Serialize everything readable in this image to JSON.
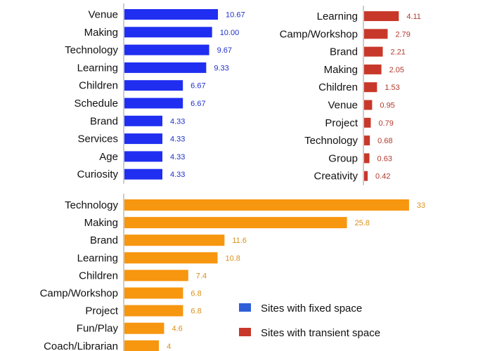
{
  "chart_data": [
    {
      "id": "fixed",
      "type": "bar",
      "orientation": "horizontal",
      "color": "#1f2ef0",
      "value_label_color": "#2030c8",
      "categories": [
        "Venue",
        "Making",
        "Technology",
        "Learning",
        "Children",
        "Schedule",
        "Brand",
        "Services",
        "Age",
        "Curiosity"
      ],
      "values": [
        10.67,
        10.0,
        9.67,
        9.33,
        6.67,
        6.67,
        4.33,
        4.33,
        4.33,
        4.33
      ],
      "labels": [
        "10.67",
        "10.00",
        "9.67",
        "9.33",
        "6.67",
        "6.67",
        "4.33",
        "4.33",
        "4.33",
        "4.33"
      ]
    },
    {
      "id": "transient",
      "type": "bar",
      "orientation": "horizontal",
      "color": "#c8382a",
      "value_label_color": "#b03a2e",
      "categories": [
        "Learning",
        "Camp/Workshop",
        "Brand",
        "Making",
        "Children",
        "Venue",
        "Project",
        "Technology",
        "Group",
        "Creativity"
      ],
      "values": [
        4.11,
        2.79,
        2.21,
        2.05,
        1.53,
        0.95,
        0.79,
        0.68,
        0.63,
        0.42
      ],
      "labels": [
        "4.11",
        "2.79",
        "2.21",
        "2.05",
        "1.53",
        "0.95",
        "0.79",
        "0.68",
        "0.63",
        "0.42"
      ]
    },
    {
      "id": "combined",
      "type": "bar",
      "orientation": "horizontal",
      "color": "#f7960f",
      "value_label_color": "#d9901a",
      "categories": [
        "Technology",
        "Making",
        "Brand",
        "Learning",
        "Children",
        "Camp/Workshop",
        "Project",
        "Fun/Play",
        "Coach/Librarian"
      ],
      "values": [
        33,
        25.8,
        11.6,
        10.8,
        7.4,
        6.8,
        6.8,
        4.6,
        4
      ],
      "labels": [
        "33",
        "25.8",
        "11.6",
        "10.8",
        "7.4",
        "6.8",
        "6.8",
        "4.6",
        "4"
      ]
    }
  ],
  "legend": [
    {
      "label": "Sites with fixed space",
      "color": "#2f5fd8"
    },
    {
      "label": "Sites with transient space",
      "color": "#c8382a"
    }
  ]
}
